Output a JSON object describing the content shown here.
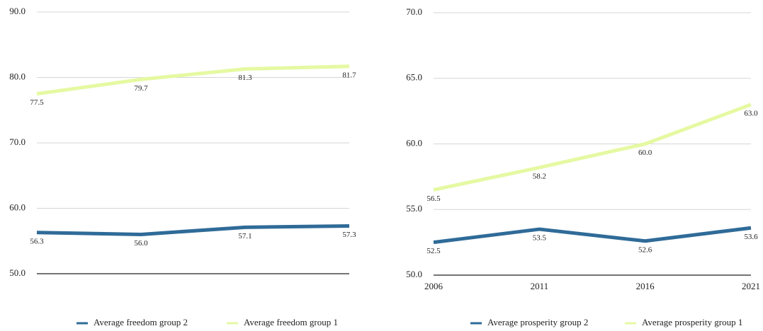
{
  "chart_data": [
    {
      "type": "line",
      "categories": [
        null,
        null,
        null,
        null
      ],
      "series": [
        {
          "name": "Average freedom group 2",
          "color": "#2f6b98",
          "values": [
            56.3,
            56.0,
            57.1,
            57.3
          ],
          "value_labels": [
            "56.3",
            "56.0",
            "57.1",
            "57.3"
          ]
        },
        {
          "name": "Average freedom group 1",
          "color": "#e5f9a2",
          "values": [
            77.5,
            79.7,
            81.3,
            81.7
          ],
          "value_labels": [
            "77.5",
            "79.7",
            "81.3",
            "81.7"
          ]
        }
      ],
      "ylim": [
        50,
        90
      ],
      "yticks": [
        {
          "value": 50,
          "label": "50.0"
        },
        {
          "value": 60,
          "label": "60.0"
        },
        {
          "value": 70,
          "label": "70.0"
        },
        {
          "value": 80,
          "label": "80.0"
        },
        {
          "value": 90,
          "label": "90.0"
        }
      ],
      "grid": true,
      "legend": "bottom"
    },
    {
      "type": "line",
      "categories": [
        "2006",
        "2011",
        "2016",
        "2021"
      ],
      "series": [
        {
          "name": "Average prosperity group 2",
          "color": "#2f6b98",
          "values": [
            52.5,
            53.5,
            52.6,
            53.6
          ],
          "value_labels": [
            "52.5",
            "53.5",
            "52.6",
            "53.6"
          ]
        },
        {
          "name": "Average prosperity group 1",
          "color": "#e5f9a2",
          "values": [
            56.5,
            58.2,
            60.0,
            63.0
          ],
          "value_labels": [
            "56.5",
            "58.2",
            "60.0",
            "63.0"
          ]
        }
      ],
      "ylim": [
        50,
        70
      ],
      "yticks": [
        {
          "value": 50,
          "label": "50.0"
        },
        {
          "value": 55,
          "label": "55.0"
        },
        {
          "value": 60,
          "label": "60.0"
        },
        {
          "value": 65,
          "label": "65.0"
        },
        {
          "value": 70,
          "label": "70.0"
        }
      ],
      "grid": true,
      "legend": "bottom"
    }
  ]
}
